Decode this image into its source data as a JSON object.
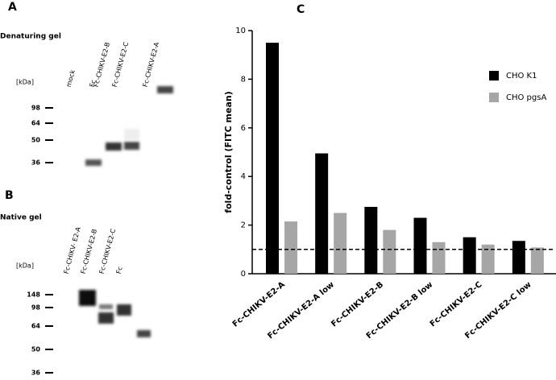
{
  "chart_data": {
    "type": "bar",
    "panel": "C",
    "y_label": "fold-control (FITC mean)",
    "categories": [
      "Fc-CHIKV-E2-A",
      "Fc-CHIKV-E2-A low",
      "Fc-CHIKV-E2-B",
      "Fc-CHIKV-E2-B low",
      "Fc-CHIKV-E2-C",
      "Fc-CHIKV-E2-C low"
    ],
    "series": [
      {
        "name": "CHO K1",
        "color": "#000000",
        "values": [
          9.5,
          4.95,
          2.75,
          2.3,
          1.5,
          1.35
        ]
      },
      {
        "name": "CHO pgsA",
        "color": "#a6a6a6",
        "values": [
          2.15,
          2.5,
          1.8,
          1.3,
          1.2,
          1.08
        ]
      }
    ],
    "ylim": [
      0,
      10
    ],
    "yticks": [
      0,
      2,
      4,
      6,
      8,
      10
    ],
    "reference_line": 1,
    "legend": "upper right"
  },
  "gel_a": {
    "panel": "A",
    "title": "Denaturing gel",
    "unit": "[kDa]",
    "lanes": [
      "mock",
      "Fc",
      "Fc-CHIKV-E2-B",
      "Fc-CHIKV-E2-C",
      "Fc-CHIKV-E2-A"
    ],
    "markers": [
      "98",
      "64",
      "50",
      "36"
    ]
  },
  "gel_b": {
    "panel": "B",
    "title": "Native gel",
    "unit": "[kDa]",
    "lanes": [
      "Fc-CHIKV- E2-A",
      "Fc-CHIKV-E2-B",
      "Fc-CHIKV-E2-C",
      "Fc"
    ],
    "markers": [
      "148",
      "98",
      "64",
      "50",
      "36"
    ]
  }
}
